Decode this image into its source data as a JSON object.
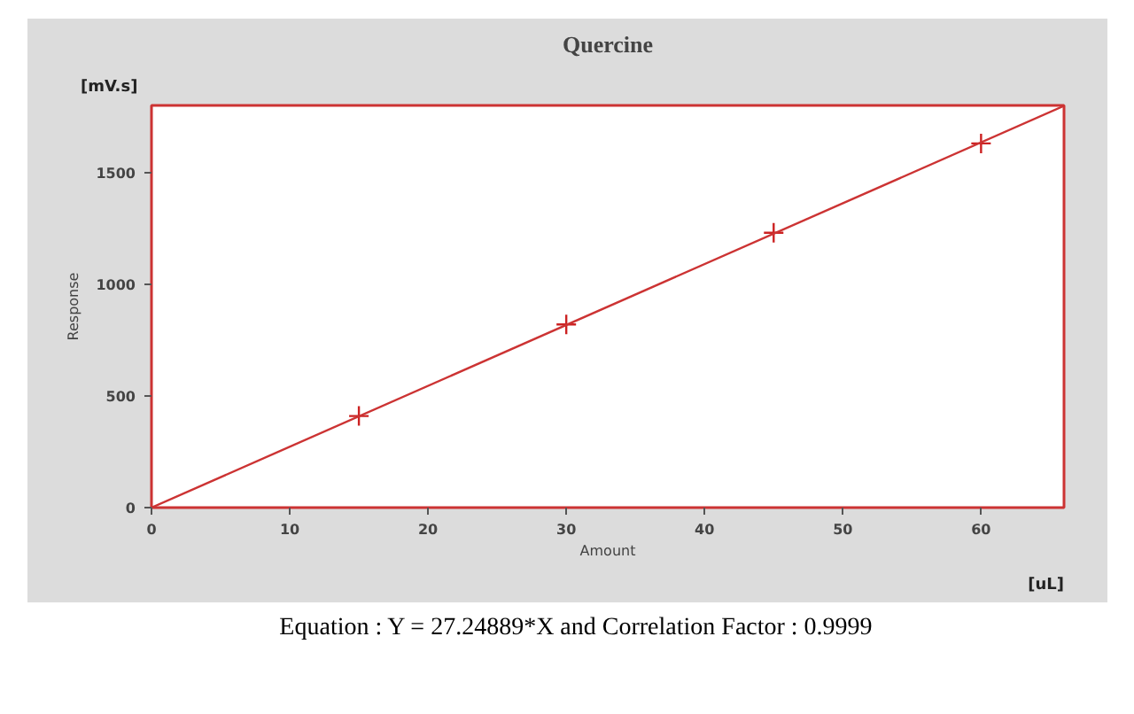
{
  "chart_data": {
    "type": "scatter",
    "title": "Quercine",
    "xlabel": "Amount",
    "ylabel": "Response",
    "annotations": [
      "[mV.s]",
      "[uL]",
      "Equation : Y = 27.24889*X and Correlation Factor : 0.9999"
    ],
    "x": [
      15,
      30,
      45,
      60
    ],
    "series": [
      {
        "color": "#cc2222",
        "values": [
          410,
          820,
          1230,
          1630
        ],
        "marker": "cross"
      },
      {
        "type": "line",
        "color": "#cc3333",
        "x": [
          0,
          66
        ],
        "values": [
          0,
          1798
        ],
        "line_style": "solid"
      }
    ],
    "xlim": [
      0,
      66
    ],
    "ylim": [
      0,
      1800
    ],
    "xticks": [
      0,
      10,
      20,
      30,
      40,
      50,
      60
    ],
    "yticks": [
      0,
      500,
      1000,
      1500
    ],
    "grid": false
  }
}
